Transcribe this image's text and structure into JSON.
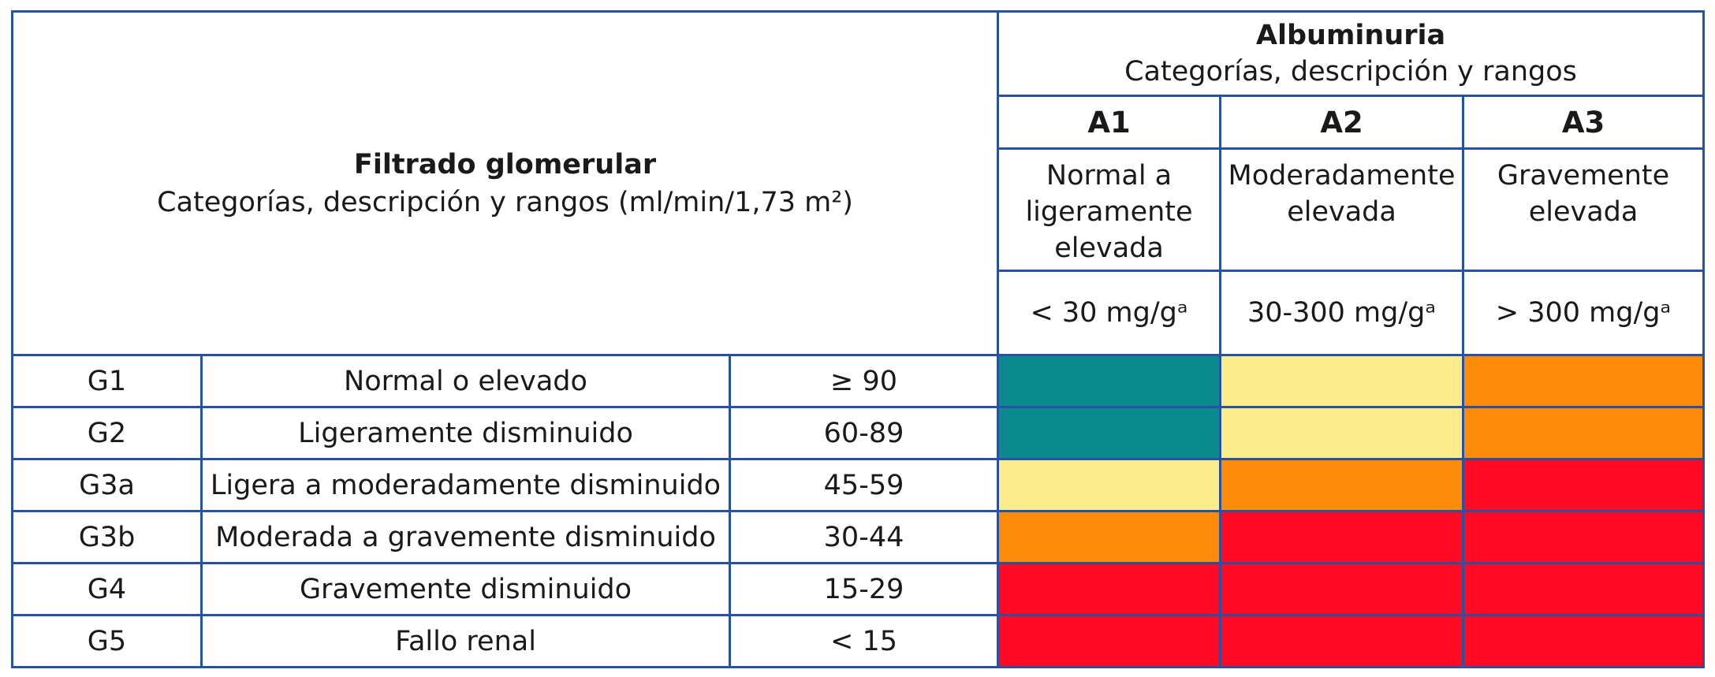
{
  "gfr_header": {
    "title": "Filtrado glomerular",
    "subtitle": "Categorías, descripción y rangos (ml/min/1,73 m²)"
  },
  "albuminuria_header": {
    "title": "Albuminuria",
    "subtitle": "Categorías, descripción y rangos"
  },
  "albuminuria_categories": [
    {
      "code": "A1",
      "description": "Normal a ligeramente elevada",
      "range": "< 30 mg/gᵃ"
    },
    {
      "code": "A2",
      "description": "Moderadamente elevada",
      "range": "30-300 mg/gᵃ"
    },
    {
      "code": "A3",
      "description": "Gravemente elevada",
      "range": "> 300 mg/gᵃ"
    }
  ],
  "gfr_rows": [
    {
      "code": "G1",
      "description": "Normal o elevado",
      "range": "≥ 90",
      "risk": [
        "low",
        "moderate",
        "high"
      ]
    },
    {
      "code": "G2",
      "description": "Ligeramente disminuido",
      "range": "60-89",
      "risk": [
        "low",
        "moderate",
        "high"
      ]
    },
    {
      "code": "G3a",
      "description": "Ligera a moderadamente disminuido",
      "range": "45-59",
      "risk": [
        "moderate",
        "high",
        "very_high"
      ]
    },
    {
      "code": "G3b",
      "description": "Moderada a gravemente disminuido",
      "range": "30-44",
      "risk": [
        "high",
        "very_high",
        "very_high"
      ]
    },
    {
      "code": "G4",
      "description": "Gravemente disminuido",
      "range": "15-29",
      "risk": [
        "very_high",
        "very_high",
        "very_high"
      ]
    },
    {
      "code": "G5",
      "description": "Fallo renal",
      "range": "< 15",
      "risk": [
        "very_high",
        "very_high",
        "very_high"
      ]
    }
  ],
  "risk_colors": {
    "low": "#0a8a8c",
    "moderate": "#fbec8c",
    "high": "#ff8b0a",
    "very_high": "#ff0a24"
  },
  "border_color": "#2851a3"
}
